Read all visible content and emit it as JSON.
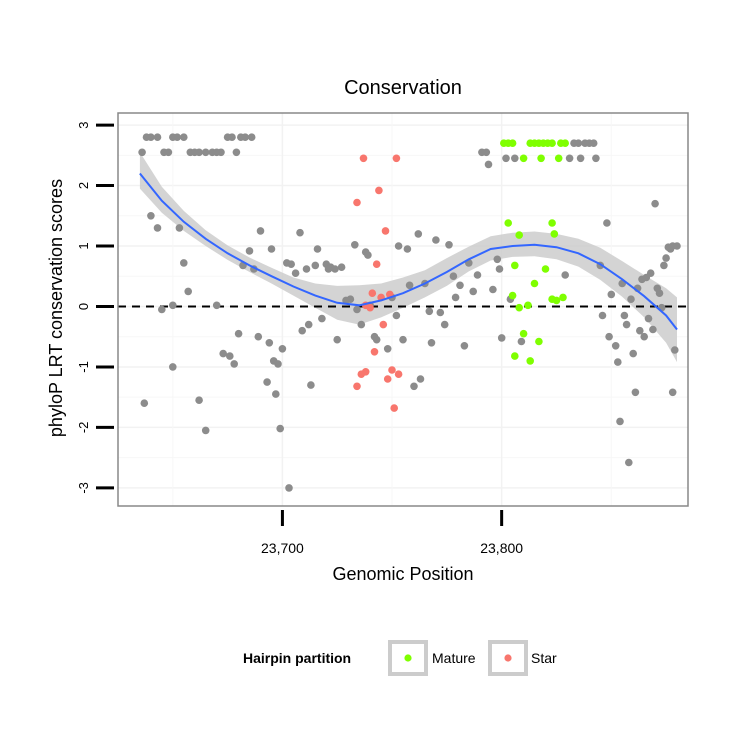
{
  "chart_data": {
    "type": "scatter",
    "title": "Conservation",
    "xlabel": "Genomic Position",
    "ylabel": "phyloP LRT conservation scores",
    "xlim": [
      23625,
      23885
    ],
    "ylim": [
      -3.3,
      3.2
    ],
    "x_ticks": [
      23700,
      23800
    ],
    "x_tick_labels": [
      "23,700",
      "23,800"
    ],
    "y_ticks": [
      -3,
      -2,
      -1,
      0,
      1,
      2,
      3
    ],
    "y_tick_labels": [
      "-3",
      "-2",
      "-1",
      "0",
      "1",
      "2",
      "3"
    ],
    "grid": true,
    "reference_line": {
      "y": 0,
      "style": "dashed"
    },
    "legend": {
      "title": "Hairpin partition",
      "position": "bottom",
      "entries": [
        {
          "label": "Mature",
          "color": "#7fff00"
        },
        {
          "label": "Star",
          "color": "#f8766d"
        }
      ]
    },
    "colors": {
      "other": "#8c8c8c",
      "Mature": "#7fff00",
      "Star": "#f8766d",
      "smooth": "#3366ff",
      "band": "#cccccc"
    },
    "smooth": {
      "x": [
        23635,
        23645,
        23655,
        23665,
        23675,
        23685,
        23695,
        23705,
        23715,
        23725,
        23735,
        23745,
        23755,
        23765,
        23775,
        23785,
        23795,
        23805,
        23815,
        23825,
        23835,
        23845,
        23855,
        23865,
        23875,
        23880
      ],
      "y": [
        2.2,
        1.75,
        1.4,
        1.12,
        0.88,
        0.68,
        0.5,
        0.33,
        0.18,
        0.06,
        0.02,
        0.1,
        0.22,
        0.38,
        0.57,
        0.78,
        0.95,
        1.0,
        1.02,
        0.98,
        0.88,
        0.7,
        0.45,
        0.17,
        -0.15,
        -0.38
      ],
      "lower": [
        1.95,
        1.55,
        1.25,
        1.0,
        0.77,
        0.57,
        0.38,
        0.18,
        -0.02,
        -0.22,
        -0.3,
        -0.18,
        -0.02,
        0.15,
        0.34,
        0.58,
        0.76,
        0.82,
        0.83,
        0.78,
        0.66,
        0.44,
        0.16,
        -0.18,
        -0.6,
        -0.92
      ],
      "upper": [
        2.55,
        1.98,
        1.58,
        1.26,
        1.01,
        0.81,
        0.64,
        0.48,
        0.38,
        0.34,
        0.35,
        0.38,
        0.48,
        0.6,
        0.8,
        0.99,
        1.16,
        1.22,
        1.24,
        1.2,
        1.12,
        0.97,
        0.75,
        0.52,
        0.3,
        0.15
      ]
    },
    "series": [
      {
        "name": "Mature",
        "points": [
          [
            23801,
            2.7
          ],
          [
            23803,
            2.7
          ],
          [
            23805,
            2.7
          ],
          [
            23813,
            2.7
          ],
          [
            23815,
            2.7
          ],
          [
            23817,
            2.7
          ],
          [
            23819,
            2.7
          ],
          [
            23821,
            2.7
          ],
          [
            23823,
            2.7
          ],
          [
            23827,
            2.7
          ],
          [
            23829,
            2.7
          ],
          [
            23810,
            2.45
          ],
          [
            23818,
            2.45
          ],
          [
            23826,
            2.45
          ],
          [
            23803,
            1.38
          ],
          [
            23823,
            1.38
          ],
          [
            23808,
            1.18
          ],
          [
            23824,
            1.2
          ],
          [
            23806,
            0.68
          ],
          [
            23820,
            0.62
          ],
          [
            23815,
            0.38
          ],
          [
            23805,
            0.18
          ],
          [
            23823,
            0.12
          ],
          [
            23825,
            0.1
          ],
          [
            23828,
            0.15
          ],
          [
            23812,
            0.02
          ],
          [
            23808,
            -0.02
          ],
          [
            23810,
            -0.45
          ],
          [
            23817,
            -0.58
          ],
          [
            23806,
            -0.82
          ],
          [
            23813,
            -0.9
          ]
        ]
      },
      {
        "name": "Star",
        "points": [
          [
            23737,
            2.45
          ],
          [
            23752,
            2.45
          ],
          [
            23744,
            1.92
          ],
          [
            23734,
            1.72
          ],
          [
            23747,
            1.25
          ],
          [
            23743,
            0.7
          ],
          [
            23741,
            0.22
          ],
          [
            23745,
            0.15
          ],
          [
            23749,
            0.2
          ],
          [
            23738,
            0.02
          ],
          [
            23740,
            -0.02
          ],
          [
            23746,
            -0.3
          ],
          [
            23742,
            -0.75
          ],
          [
            23738,
            -1.08
          ],
          [
            23736,
            -1.12
          ],
          [
            23750,
            -1.05
          ],
          [
            23753,
            -1.12
          ],
          [
            23734,
            -1.32
          ],
          [
            23748,
            -1.2
          ],
          [
            23751,
            -1.68
          ]
        ]
      },
      {
        "name": "",
        "points": [
          [
            23636,
            2.55
          ],
          [
            23638,
            2.8
          ],
          [
            23640,
            2.8
          ],
          [
            23643,
            2.8
          ],
          [
            23646,
            2.55
          ],
          [
            23648,
            2.55
          ],
          [
            23650,
            2.8
          ],
          [
            23652,
            2.8
          ],
          [
            23655,
            2.8
          ],
          [
            23658,
            2.55
          ],
          [
            23660,
            2.55
          ],
          [
            23662,
            2.55
          ],
          [
            23665,
            2.55
          ],
          [
            23668,
            2.55
          ],
          [
            23670,
            2.55
          ],
          [
            23672,
            2.55
          ],
          [
            23675,
            2.8
          ],
          [
            23677,
            2.8
          ],
          [
            23679,
            2.55
          ],
          [
            23681,
            2.8
          ],
          [
            23683,
            2.8
          ],
          [
            23686,
            2.8
          ],
          [
            23640,
            1.5
          ],
          [
            23643,
            1.3
          ],
          [
            23653,
            1.3
          ],
          [
            23650,
            0.02
          ],
          [
            23655,
            0.72
          ],
          [
            23657,
            0.25
          ],
          [
            23645,
            -0.05
          ],
          [
            23650,
            -1.0
          ],
          [
            23637,
            -1.6
          ],
          [
            23662,
            -1.55
          ],
          [
            23665,
            -2.05
          ],
          [
            23670,
            0.02
          ],
          [
            23673,
            -0.78
          ],
          [
            23676,
            -0.82
          ],
          [
            23678,
            -0.95
          ],
          [
            23680,
            -0.45
          ],
          [
            23682,
            0.68
          ],
          [
            23685,
            0.92
          ],
          [
            23687,
            0.62
          ],
          [
            23689,
            -0.5
          ],
          [
            23690,
            1.25
          ],
          [
            23693,
            -1.25
          ],
          [
            23694,
            -0.6
          ],
          [
            23696,
            -0.9
          ],
          [
            23697,
            -1.45
          ],
          [
            23698,
            -0.95
          ],
          [
            23699,
            -2.02
          ],
          [
            23700,
            -0.7
          ],
          [
            23702,
            0.72
          ],
          [
            23704,
            0.7
          ],
          [
            23706,
            0.55
          ],
          [
            23708,
            1.22
          ],
          [
            23709,
            -0.4
          ],
          [
            23711,
            0.62
          ],
          [
            23712,
            -0.3
          ],
          [
            23713,
            -1.3
          ],
          [
            23715,
            0.68
          ],
          [
            23716,
            0.95
          ],
          [
            23718,
            -0.2
          ],
          [
            23720,
            0.7
          ],
          [
            23721,
            0.62
          ],
          [
            23722,
            0.65
          ],
          [
            23724,
            0.62
          ],
          [
            23725,
            -0.55
          ],
          [
            23727,
            0.65
          ],
          [
            23729,
            0.1
          ],
          [
            23703,
            -3.0
          ],
          [
            23695,
            0.95
          ],
          [
            23731,
            0.12
          ],
          [
            23733,
            1.02
          ],
          [
            23734,
            -0.05
          ],
          [
            23736,
            -0.3
          ],
          [
            23738,
            0.9
          ],
          [
            23739,
            0.85
          ],
          [
            23740,
            0.02
          ],
          [
            23742,
            -0.5
          ],
          [
            23743,
            -0.55
          ],
          [
            23748,
            -0.7
          ],
          [
            23750,
            0.15
          ],
          [
            23752,
            -0.15
          ],
          [
            23753,
            1.0
          ],
          [
            23755,
            -0.55
          ],
          [
            23757,
            0.95
          ],
          [
            23758,
            0.35
          ],
          [
            23760,
            -1.32
          ],
          [
            23762,
            1.2
          ],
          [
            23763,
            -1.2
          ],
          [
            23765,
            0.38
          ],
          [
            23767,
            -0.08
          ],
          [
            23768,
            -0.6
          ],
          [
            23770,
            1.1
          ],
          [
            23772,
            -0.1
          ],
          [
            23774,
            -0.3
          ],
          [
            23776,
            1.02
          ],
          [
            23778,
            0.5
          ],
          [
            23779,
            0.15
          ],
          [
            23781,
            0.35
          ],
          [
            23783,
            -0.65
          ],
          [
            23785,
            0.72
          ],
          [
            23787,
            0.25
          ],
          [
            23789,
            0.52
          ],
          [
            23791,
            2.55
          ],
          [
            23793,
            2.55
          ],
          [
            23794,
            2.35
          ],
          [
            23796,
            0.28
          ],
          [
            23798,
            0.78
          ],
          [
            23799,
            0.62
          ],
          [
            23800,
            -0.52
          ],
          [
            23802,
            2.45
          ],
          [
            23804,
            0.12
          ],
          [
            23806,
            2.45
          ],
          [
            23809,
            -0.58
          ],
          [
            23829,
            0.52
          ],
          [
            23831,
            2.45
          ],
          [
            23833,
            2.7
          ],
          [
            23835,
            2.7
          ],
          [
            23836,
            2.45
          ],
          [
            23838,
            2.7
          ],
          [
            23840,
            2.7
          ],
          [
            23842,
            2.7
          ],
          [
            23843,
            2.45
          ],
          [
            23845,
            0.68
          ],
          [
            23846,
            -0.15
          ],
          [
            23848,
            1.38
          ],
          [
            23849,
            -0.5
          ],
          [
            23850,
            0.2
          ],
          [
            23852,
            -0.65
          ],
          [
            23853,
            -0.92
          ],
          [
            23854,
            -1.9
          ],
          [
            23855,
            0.38
          ],
          [
            23856,
            -0.15
          ],
          [
            23857,
            -0.3
          ],
          [
            23858,
            -2.58
          ],
          [
            23859,
            0.12
          ],
          [
            23860,
            -0.78
          ],
          [
            23861,
            -1.42
          ],
          [
            23862,
            0.3
          ],
          [
            23863,
            -0.4
          ],
          [
            23864,
            0.45
          ],
          [
            23865,
            -0.5
          ],
          [
            23866,
            0.48
          ],
          [
            23867,
            -0.2
          ],
          [
            23868,
            0.55
          ],
          [
            23869,
            -0.38
          ],
          [
            23870,
            1.7
          ],
          [
            23871,
            0.3
          ],
          [
            23872,
            0.22
          ],
          [
            23873,
            -0.02
          ],
          [
            23874,
            0.68
          ],
          [
            23875,
            0.8
          ],
          [
            23876,
            0.98
          ],
          [
            23877,
            0.95
          ],
          [
            23878,
            1.0
          ],
          [
            23879,
            -0.72
          ],
          [
            23880,
            1.0
          ],
          [
            23878,
            -1.42
          ]
        ]
      }
    ]
  }
}
